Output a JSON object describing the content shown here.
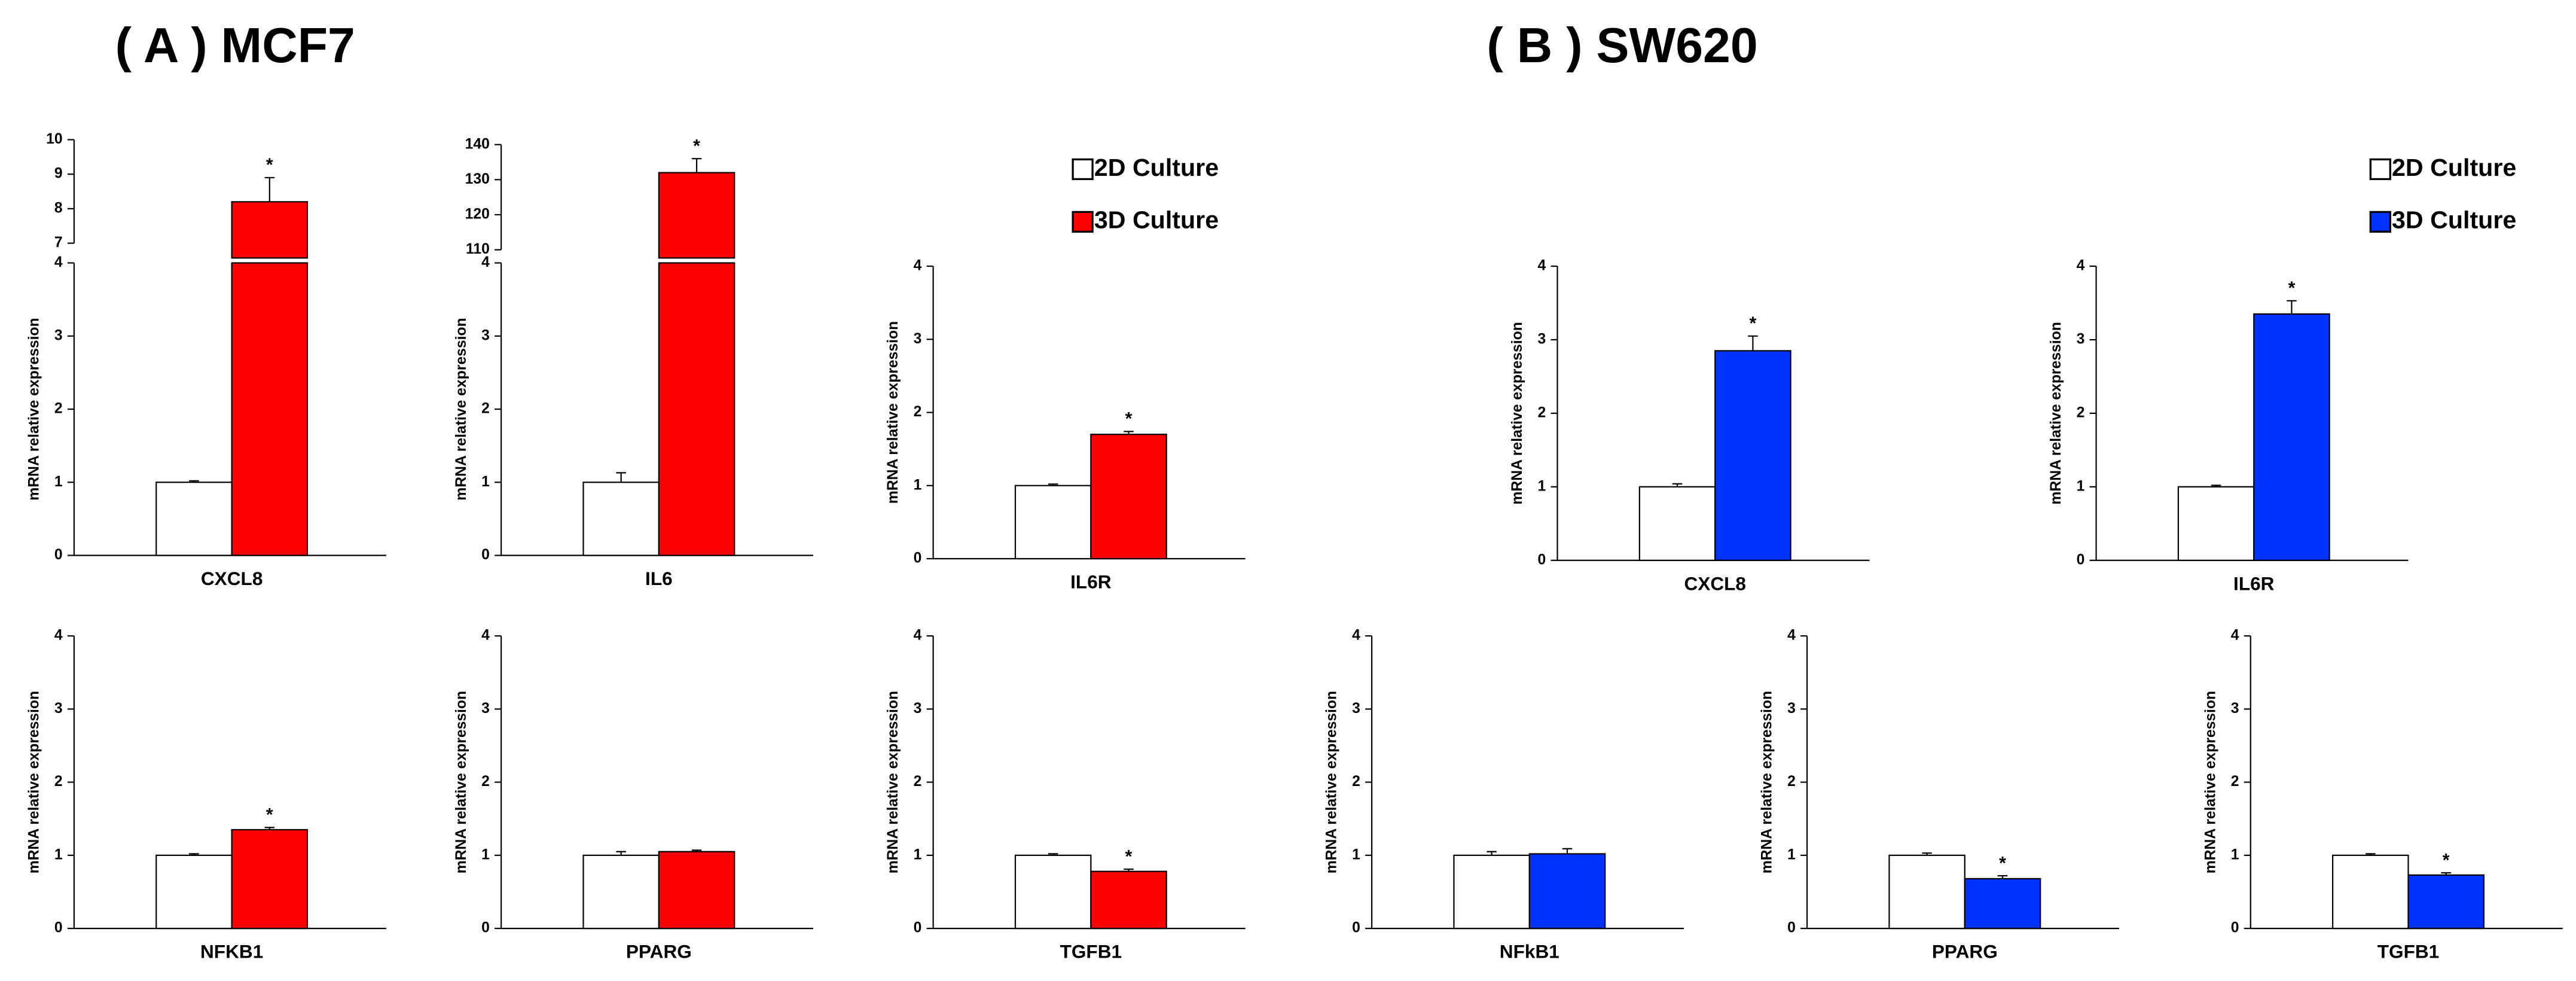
{
  "panels": [
    {
      "title": "( A ) MCF7"
    },
    {
      "title": "( B ) SW620"
    }
  ],
  "chart_data": [
    {
      "type": "bar",
      "categories": [
        "CXCL8"
      ],
      "ylabel": "mRNA relative expression",
      "ylim": [
        0,
        4
      ],
      "yticks": [
        0,
        1,
        2,
        3,
        4
      ],
      "break": {
        "ylim": [
          7,
          10
        ],
        "yticks": [
          7,
          8,
          9,
          10
        ]
      },
      "annotation": "*",
      "series": [
        {
          "name": "2D Culture",
          "color": "#ffffff",
          "values": [
            1.0
          ],
          "errors": [
            0.02
          ]
        },
        {
          "name": "3D Culture",
          "color": "#ff0000",
          "values": [
            8.2
          ],
          "errors": [
            0.7
          ]
        }
      ]
    },
    {
      "type": "bar",
      "categories": [
        "IL6"
      ],
      "ylabel": "mRNA relative expression",
      "ylim": [
        0,
        4
      ],
      "yticks": [
        0,
        1,
        2,
        3,
        4
      ],
      "break": {
        "ylim": [
          110,
          140
        ],
        "yticks": [
          110,
          120,
          130,
          140
        ]
      },
      "annotation": "*",
      "series": [
        {
          "name": "2D Culture",
          "color": "#ffffff",
          "values": [
            1.0
          ],
          "errors": [
            0.13
          ]
        },
        {
          "name": "3D Culture",
          "color": "#ff0000",
          "values": [
            132
          ],
          "errors": [
            4
          ]
        }
      ]
    },
    {
      "type": "bar",
      "categories": [
        "IL6R"
      ],
      "ylabel": "mRNA relative expression",
      "ylim": [
        0,
        4
      ],
      "yticks": [
        0,
        1,
        2,
        3,
        4
      ],
      "annotation": "*",
      "series": [
        {
          "name": "2D Culture",
          "color": "#ffffff",
          "values": [
            1.0
          ],
          "errors": [
            0.02
          ]
        },
        {
          "name": "3D Culture",
          "color": "#ff0000",
          "values": [
            1.7
          ],
          "errors": [
            0.04
          ]
        }
      ]
    },
    {
      "type": "bar",
      "categories": [
        "NFKB1"
      ],
      "ylabel": "mRNA relative expression",
      "ylim": [
        0,
        4
      ],
      "yticks": [
        0,
        1,
        2,
        3,
        4
      ],
      "annotation": "*",
      "series": [
        {
          "name": "2D Culture",
          "color": "#ffffff",
          "values": [
            1.0
          ],
          "errors": [
            0.02
          ]
        },
        {
          "name": "3D Culture",
          "color": "#ff0000",
          "values": [
            1.35
          ],
          "errors": [
            0.03
          ]
        }
      ]
    },
    {
      "type": "bar",
      "categories": [
        "PPARG"
      ],
      "ylabel": "mRNA relative expression",
      "ylim": [
        0,
        4
      ],
      "yticks": [
        0,
        1,
        2,
        3,
        4
      ],
      "series": [
        {
          "name": "2D Culture",
          "color": "#ffffff",
          "values": [
            1.0
          ],
          "errors": [
            0.05
          ]
        },
        {
          "name": "3D Culture",
          "color": "#ff0000",
          "values": [
            1.05
          ],
          "errors": [
            0.02
          ]
        }
      ]
    },
    {
      "type": "bar",
      "categories": [
        "TGFB1"
      ],
      "ylabel": "mRNA relative expression",
      "ylim": [
        0,
        4
      ],
      "yticks": [
        0,
        1,
        2,
        3,
        4
      ],
      "annotation": "*",
      "series": [
        {
          "name": "2D Culture",
          "color": "#ffffff",
          "values": [
            1.0
          ],
          "errors": [
            0.02
          ]
        },
        {
          "name": "3D Culture",
          "color": "#ff0000",
          "values": [
            0.78
          ],
          "errors": [
            0.03
          ]
        }
      ]
    },
    {
      "type": "bar",
      "categories": [
        "CXCL8"
      ],
      "ylabel": "mRNA relative expression",
      "ylim": [
        0,
        4
      ],
      "yticks": [
        0,
        1,
        2,
        3,
        4
      ],
      "annotation": "*",
      "series": [
        {
          "name": "2D Culture",
          "color": "#ffffff",
          "values": [
            1.0
          ],
          "errors": [
            0.04
          ]
        },
        {
          "name": "3D Culture",
          "color": "#0033ff",
          "values": [
            2.85
          ],
          "errors": [
            0.2
          ]
        }
      ]
    },
    {
      "type": "bar",
      "categories": [
        "IL6R"
      ],
      "ylabel": "mRNA relative expression",
      "ylim": [
        0,
        4
      ],
      "yticks": [
        0,
        1,
        2,
        3,
        4
      ],
      "annotation": "*",
      "series": [
        {
          "name": "2D Culture",
          "color": "#ffffff",
          "values": [
            1.0
          ],
          "errors": [
            0.02
          ]
        },
        {
          "name": "3D Culture",
          "color": "#0033ff",
          "values": [
            3.35
          ],
          "errors": [
            0.18
          ]
        }
      ]
    },
    {
      "type": "bar",
      "categories": [
        "NFkB1"
      ],
      "ylabel": "mRNA relative expression",
      "ylim": [
        0,
        4
      ],
      "yticks": [
        0,
        1,
        2,
        3,
        4
      ],
      "series": [
        {
          "name": "2D Culture",
          "color": "#ffffff",
          "values": [
            1.0
          ],
          "errors": [
            0.05
          ]
        },
        {
          "name": "3D Culture",
          "color": "#0033ff",
          "values": [
            1.02
          ],
          "errors": [
            0.07
          ]
        }
      ]
    },
    {
      "type": "bar",
      "categories": [
        "PPARG"
      ],
      "ylabel": "mRNA relative expression",
      "ylim": [
        0,
        4
      ],
      "yticks": [
        0,
        1,
        2,
        3,
        4
      ],
      "annotation": "*",
      "series": [
        {
          "name": "2D Culture",
          "color": "#ffffff",
          "values": [
            1.0
          ],
          "errors": [
            0.03
          ]
        },
        {
          "name": "3D Culture",
          "color": "#0033ff",
          "values": [
            0.68
          ],
          "errors": [
            0.04
          ]
        }
      ]
    },
    {
      "type": "bar",
      "categories": [
        "TGFB1"
      ],
      "ylabel": "mRNA relative expression",
      "ylim": [
        0,
        4
      ],
      "yticks": [
        0,
        1,
        2,
        3,
        4
      ],
      "annotation": "*",
      "series": [
        {
          "name": "2D Culture",
          "color": "#ffffff",
          "values": [
            1.0
          ],
          "errors": [
            0.02
          ]
        },
        {
          "name": "3D Culture",
          "color": "#0033ff",
          "values": [
            0.73
          ],
          "errors": [
            0.03
          ]
        }
      ]
    }
  ]
}
